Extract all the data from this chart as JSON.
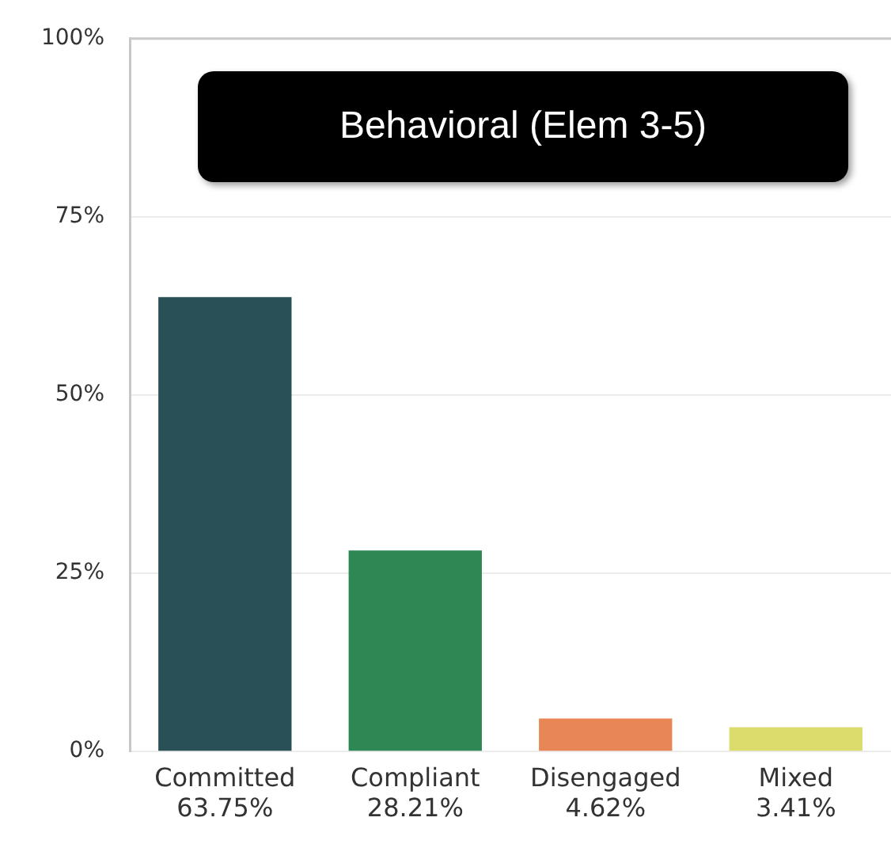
{
  "chart_data": {
    "type": "bar",
    "title": "Behavioral (Elem 3-5)",
    "categories": [
      "Committed",
      "Compliant",
      "Disengaged",
      "Mixed"
    ],
    "values": [
      63.75,
      28.21,
      4.62,
      3.41
    ],
    "colors": [
      "#285056",
      "#2e8853",
      "#e98655",
      "#dcdc6c"
    ],
    "value_labels": [
      "63.75%",
      "28.21%",
      "4.62%",
      "3.41%"
    ],
    "ylim": [
      0,
      100
    ],
    "yticks": [
      {
        "value": 0,
        "label": "0%"
      },
      {
        "value": 25,
        "label": "25%"
      },
      {
        "value": 50,
        "label": "50%"
      },
      {
        "value": 75,
        "label": "75%"
      },
      {
        "value": 100,
        "label": "100%"
      }
    ],
    "grid": "y"
  }
}
